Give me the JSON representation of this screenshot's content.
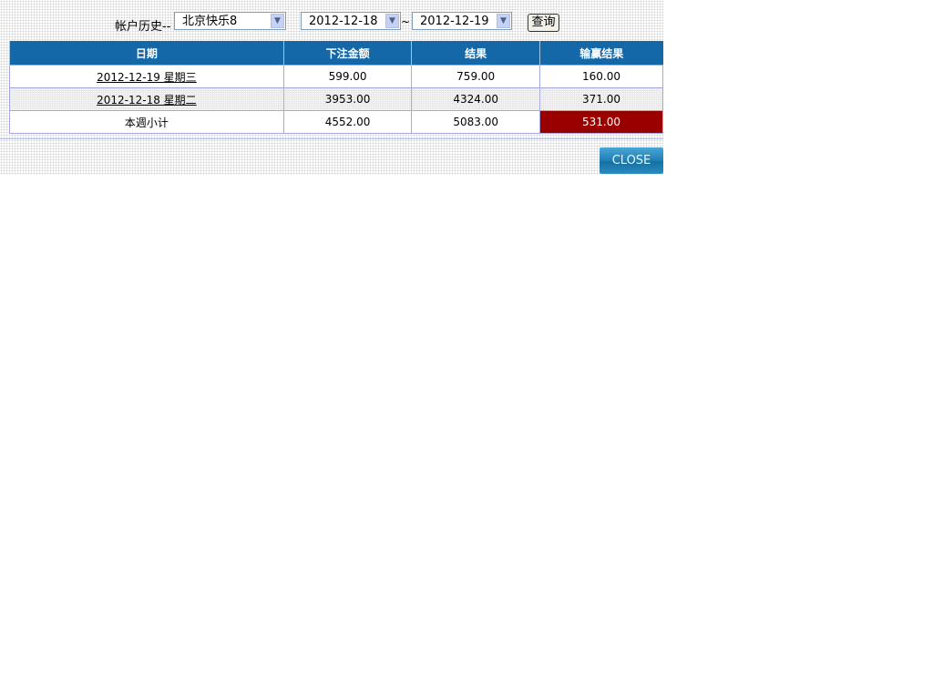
{
  "filter": {
    "label": "帐户历史--",
    "game": "北京快乐8",
    "date_from": "2012-12-18",
    "separator": "~",
    "date_to": "2012-12-19",
    "query_button": "查询"
  },
  "table": {
    "headers": [
      "日期",
      "下注金额",
      "结果",
      "输赢结果"
    ],
    "rows": [
      {
        "date": "2012-12-19 星期三",
        "bet": "599.00",
        "result": "759.00",
        "winloss": "160.00"
      },
      {
        "date": "2012-12-18 星期二",
        "bet": "3953.00",
        "result": "4324.00",
        "winloss": "371.00"
      }
    ],
    "subtotal": {
      "label": "本週小计",
      "bet": "4552.00",
      "result": "5083.00",
      "winloss": "531.00"
    }
  },
  "close_button": "CLOSE",
  "colors": {
    "header": "#1468a8",
    "subtotal_highlight": "#990000"
  }
}
